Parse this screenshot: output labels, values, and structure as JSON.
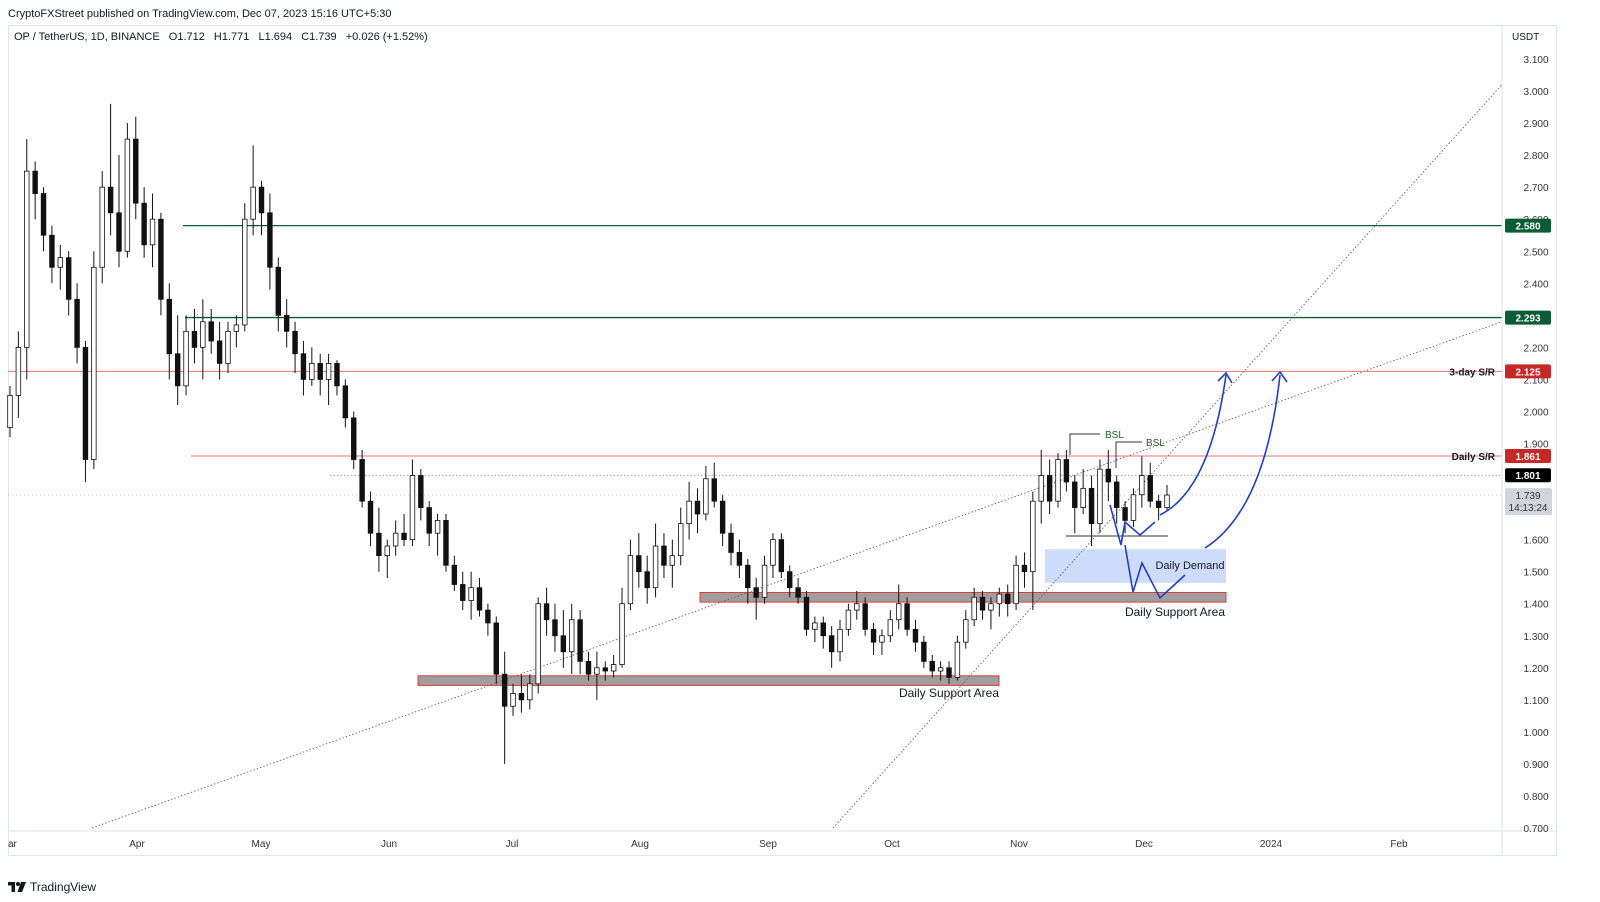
{
  "publisher": "CryptoFXStreet published on TradingView.com, Dec 07, 2023 15:16 UTC+5:30",
  "symbol": {
    "pair": "OP / TetherUS, 1D, BINANCE",
    "open": "O1.712",
    "high": "H1.771",
    "low": "L1.694",
    "close": "C1.739",
    "change": "+0.026 (+1.52%)"
  },
  "logo": "TradingView",
  "chart_data": {
    "type": "candlestick",
    "currency": "USDT",
    "ylim": [
      0.7,
      3.15
    ],
    "yticks": [
      "3.100",
      "3.000",
      "2.900",
      "2.800",
      "2.700",
      "2.600",
      "2.500",
      "2.400",
      "2.300",
      "2.200",
      "2.100",
      "2.000",
      "1.900",
      "1.800",
      "1.700",
      "1.600",
      "1.500",
      "1.400",
      "1.300",
      "1.200",
      "1.100",
      "1.000",
      "0.900",
      "0.800",
      "0.700"
    ],
    "xticks": [
      "ar",
      "Apr",
      "May",
      "Jun",
      "Jul",
      "Aug",
      "Sep",
      "Oct",
      "Nov",
      "Dec",
      "2024",
      "Feb"
    ],
    "price_labels": [
      {
        "value": 2.58,
        "text": "2.580",
        "color": "#0a5c36"
      },
      {
        "value": 2.293,
        "text": "2.293",
        "color": "#0a5c36"
      },
      {
        "value": 2.125,
        "text": "2.125",
        "color": "#c62828"
      },
      {
        "value": 1.861,
        "text": "1.861",
        "color": "#c62828"
      },
      {
        "value": 1.801,
        "text": "1.801",
        "color": "#000000"
      }
    ],
    "current_price": "1.739",
    "countdown": "14:13:24",
    "levels": [
      {
        "value": 2.58,
        "color": "#0a5c36",
        "label": ""
      },
      {
        "value": 2.293,
        "color": "#0a5c36",
        "label": ""
      },
      {
        "value": 2.125,
        "color": "#e57373",
        "label": "3-day S/R"
      },
      {
        "value": 1.861,
        "color": "#e57373",
        "label": "Daily S/R"
      }
    ],
    "zones": [
      {
        "label": "Daily Support Area",
        "top": 1.175,
        "bottom": 1.145
      },
      {
        "label": "Daily Support Area",
        "top": 1.435,
        "bottom": 1.405
      },
      {
        "label": "Daily Demand",
        "top": 1.57,
        "bottom": 1.465
      }
    ],
    "annotations": [
      "BSL",
      "BSL"
    ],
    "candles": [
      [
        1.95,
        2.08,
        1.92,
        2.05
      ],
      [
        2.05,
        2.25,
        1.98,
        2.2
      ],
      [
        2.2,
        2.85,
        2.1,
        2.75
      ],
      [
        2.75,
        2.78,
        2.6,
        2.68
      ],
      [
        2.68,
        2.7,
        2.5,
        2.55
      ],
      [
        2.55,
        2.58,
        2.4,
        2.45
      ],
      [
        2.45,
        2.52,
        2.38,
        2.48
      ],
      [
        2.48,
        2.5,
        2.3,
        2.35
      ],
      [
        2.35,
        2.4,
        2.15,
        2.2
      ],
      [
        2.2,
        2.22,
        1.78,
        1.85
      ],
      [
        1.85,
        2.5,
        1.82,
        2.45
      ],
      [
        2.45,
        2.75,
        2.4,
        2.7
      ],
      [
        2.7,
        2.96,
        2.55,
        2.62
      ],
      [
        2.62,
        2.8,
        2.45,
        2.5
      ],
      [
        2.5,
        2.9,
        2.48,
        2.85
      ],
      [
        2.85,
        2.92,
        2.6,
        2.65
      ],
      [
        2.65,
        2.7,
        2.48,
        2.52
      ],
      [
        2.52,
        2.68,
        2.45,
        2.6
      ],
      [
        2.6,
        2.62,
        2.3,
        2.35
      ],
      [
        2.35,
        2.4,
        2.1,
        2.18
      ],
      [
        2.18,
        2.3,
        2.02,
        2.08
      ],
      [
        2.08,
        2.3,
        2.05,
        2.25
      ],
      [
        2.25,
        2.32,
        2.15,
        2.2
      ],
      [
        2.2,
        2.35,
        2.1,
        2.28
      ],
      [
        2.28,
        2.32,
        2.18,
        2.22
      ],
      [
        2.22,
        2.28,
        2.1,
        2.15
      ],
      [
        2.15,
        2.28,
        2.12,
        2.25
      ],
      [
        2.25,
        2.3,
        2.2,
        2.27
      ],
      [
        2.27,
        2.65,
        2.25,
        2.6
      ],
      [
        2.6,
        2.83,
        2.55,
        2.7
      ],
      [
        2.7,
        2.72,
        2.55,
        2.62
      ],
      [
        2.62,
        2.68,
        2.38,
        2.45
      ],
      [
        2.45,
        2.48,
        2.25,
        2.3
      ],
      [
        2.3,
        2.35,
        2.2,
        2.25
      ],
      [
        2.25,
        2.28,
        2.12,
        2.18
      ],
      [
        2.18,
        2.22,
        2.05,
        2.1
      ],
      [
        2.1,
        2.2,
        2.08,
        2.15
      ],
      [
        2.15,
        2.18,
        2.05,
        2.1
      ],
      [
        2.1,
        2.18,
        2.02,
        2.15
      ],
      [
        2.15,
        2.16,
        2.05,
        2.08
      ],
      [
        2.08,
        2.1,
        1.95,
        1.98
      ],
      [
        1.98,
        2.0,
        1.82,
        1.85
      ],
      [
        1.85,
        1.88,
        1.7,
        1.72
      ],
      [
        1.72,
        1.75,
        1.58,
        1.62
      ],
      [
        1.62,
        1.7,
        1.5,
        1.55
      ],
      [
        1.55,
        1.6,
        1.48,
        1.58
      ],
      [
        1.58,
        1.66,
        1.55,
        1.62
      ],
      [
        1.62,
        1.68,
        1.58,
        1.6
      ],
      [
        1.6,
        1.85,
        1.58,
        1.8
      ],
      [
        1.8,
        1.82,
        1.66,
        1.7
      ],
      [
        1.7,
        1.72,
        1.58,
        1.62
      ],
      [
        1.62,
        1.68,
        1.55,
        1.66
      ],
      [
        1.66,
        1.68,
        1.5,
        1.52
      ],
      [
        1.52,
        1.55,
        1.44,
        1.46
      ],
      [
        1.46,
        1.5,
        1.38,
        1.41
      ],
      [
        1.41,
        1.5,
        1.35,
        1.45
      ],
      [
        1.45,
        1.48,
        1.36,
        1.38
      ],
      [
        1.38,
        1.4,
        1.3,
        1.34
      ],
      [
        1.34,
        1.36,
        1.15,
        1.18
      ],
      [
        1.18,
        1.25,
        0.9,
        1.08
      ],
      [
        1.08,
        1.15,
        1.05,
        1.12
      ],
      [
        1.12,
        1.18,
        1.06,
        1.1
      ],
      [
        1.1,
        1.18,
        1.07,
        1.15
      ],
      [
        1.15,
        1.42,
        1.12,
        1.4
      ],
      [
        1.4,
        1.45,
        1.3,
        1.35
      ],
      [
        1.35,
        1.4,
        1.25,
        1.3
      ],
      [
        1.3,
        1.38,
        1.2,
        1.25
      ],
      [
        1.25,
        1.4,
        1.18,
        1.35
      ],
      [
        1.35,
        1.38,
        1.18,
        1.22
      ],
      [
        1.22,
        1.25,
        1.16,
        1.18
      ],
      [
        1.18,
        1.25,
        1.1,
        1.2
      ],
      [
        1.2,
        1.22,
        1.16,
        1.19
      ],
      [
        1.19,
        1.24,
        1.17,
        1.21
      ],
      [
        1.21,
        1.45,
        1.2,
        1.4
      ],
      [
        1.4,
        1.6,
        1.38,
        1.55
      ],
      [
        1.55,
        1.62,
        1.45,
        1.5
      ],
      [
        1.5,
        1.55,
        1.4,
        1.45
      ],
      [
        1.45,
        1.65,
        1.42,
        1.58
      ],
      [
        1.58,
        1.62,
        1.48,
        1.52
      ],
      [
        1.52,
        1.6,
        1.45,
        1.55
      ],
      [
        1.55,
        1.7,
        1.52,
        1.65
      ],
      [
        1.65,
        1.78,
        1.6,
        1.72
      ],
      [
        1.72,
        1.76,
        1.62,
        1.68
      ],
      [
        1.68,
        1.83,
        1.66,
        1.79
      ],
      [
        1.79,
        1.84,
        1.7,
        1.72
      ],
      [
        1.72,
        1.74,
        1.58,
        1.62
      ],
      [
        1.62,
        1.65,
        1.52,
        1.56
      ],
      [
        1.56,
        1.6,
        1.48,
        1.52
      ],
      [
        1.52,
        1.54,
        1.4,
        1.45
      ],
      [
        1.45,
        1.48,
        1.35,
        1.42
      ],
      [
        1.42,
        1.55,
        1.4,
        1.52
      ],
      [
        1.52,
        1.62,
        1.48,
        1.6
      ],
      [
        1.6,
        1.62,
        1.48,
        1.5
      ],
      [
        1.5,
        1.52,
        1.42,
        1.45
      ],
      [
        1.45,
        1.48,
        1.4,
        1.42
      ],
      [
        1.42,
        1.44,
        1.3,
        1.32
      ],
      [
        1.32,
        1.36,
        1.28,
        1.34
      ],
      [
        1.34,
        1.36,
        1.26,
        1.3
      ],
      [
        1.3,
        1.33,
        1.2,
        1.25
      ],
      [
        1.25,
        1.35,
        1.22,
        1.32
      ],
      [
        1.32,
        1.4,
        1.3,
        1.38
      ],
      [
        1.38,
        1.44,
        1.35,
        1.4
      ],
      [
        1.4,
        1.42,
        1.3,
        1.32
      ],
      [
        1.32,
        1.34,
        1.24,
        1.28
      ],
      [
        1.28,
        1.32,
        1.24,
        1.3
      ],
      [
        1.3,
        1.38,
        1.28,
        1.35
      ],
      [
        1.35,
        1.46,
        1.32,
        1.4
      ],
      [
        1.4,
        1.42,
        1.3,
        1.32
      ],
      [
        1.32,
        1.35,
        1.25,
        1.28
      ],
      [
        1.28,
        1.3,
        1.2,
        1.22
      ],
      [
        1.22,
        1.24,
        1.17,
        1.19
      ],
      [
        1.19,
        1.22,
        1.16,
        1.2
      ],
      [
        1.2,
        1.22,
        1.15,
        1.17
      ],
      [
        1.17,
        1.3,
        1.16,
        1.28
      ],
      [
        1.28,
        1.38,
        1.26,
        1.35
      ],
      [
        1.35,
        1.45,
        1.33,
        1.42
      ],
      [
        1.42,
        1.44,
        1.35,
        1.38
      ],
      [
        1.38,
        1.42,
        1.32,
        1.4
      ],
      [
        1.4,
        1.45,
        1.36,
        1.43
      ],
      [
        1.43,
        1.46,
        1.36,
        1.4
      ],
      [
        1.4,
        1.55,
        1.38,
        1.52
      ],
      [
        1.52,
        1.56,
        1.45,
        1.5
      ],
      [
        1.5,
        1.75,
        1.38,
        1.72
      ],
      [
        1.72,
        1.88,
        1.65,
        1.8
      ],
      [
        1.8,
        1.85,
        1.68,
        1.72
      ],
      [
        1.72,
        1.87,
        1.7,
        1.85
      ],
      [
        1.85,
        1.88,
        1.75,
        1.78
      ],
      [
        1.78,
        1.8,
        1.62,
        1.7
      ],
      [
        1.7,
        1.82,
        1.68,
        1.76
      ],
      [
        1.76,
        1.8,
        1.58,
        1.65
      ],
      [
        1.65,
        1.85,
        1.62,
        1.82
      ],
      [
        1.82,
        1.88,
        1.72,
        1.78
      ],
      [
        1.78,
        1.8,
        1.65,
        1.7
      ],
      [
        1.7,
        1.72,
        1.62,
        1.66
      ],
      [
        1.66,
        1.76,
        1.64,
        1.74
      ],
      [
        1.74,
        1.86,
        1.7,
        1.8
      ],
      [
        1.8,
        1.84,
        1.7,
        1.72
      ],
      [
        1.72,
        1.74,
        1.66,
        1.7
      ],
      [
        1.7,
        1.77,
        1.69,
        1.739
      ]
    ]
  }
}
